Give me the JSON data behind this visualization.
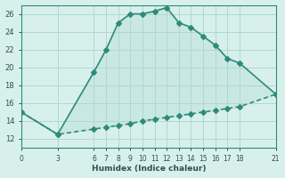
{
  "line1_x": [
    0,
    3,
    6,
    7,
    8,
    9,
    10,
    11,
    12,
    13,
    14,
    15,
    16,
    17,
    18,
    21
  ],
  "line1_y": [
    15,
    12.5,
    19.5,
    22,
    25,
    26,
    26,
    26.3,
    26.7,
    25,
    24.5,
    23.5,
    22.5,
    21,
    20.5,
    17
  ],
  "line2_x": [
    0,
    3,
    6,
    7,
    8,
    9,
    10,
    11,
    12,
    13,
    14,
    15,
    16,
    17,
    18,
    21
  ],
  "line2_y": [
    15,
    12.5,
    13.1,
    13.3,
    13.5,
    13.7,
    14.0,
    14.2,
    14.4,
    14.6,
    14.8,
    15.0,
    15.2,
    15.4,
    15.6,
    17
  ],
  "line_color": "#2e8b7a",
  "bg_color": "#d8f0ec",
  "grid_color": "#b0d8d0",
  "xlabel": "Humidex (Indice chaleur)",
  "ylabel": "",
  "xlim": [
    0,
    21
  ],
  "ylim": [
    11,
    27
  ],
  "yticks": [
    12,
    14,
    16,
    18,
    20,
    22,
    24,
    26
  ],
  "xticks": [
    0,
    3,
    6,
    7,
    8,
    9,
    10,
    11,
    12,
    13,
    14,
    15,
    16,
    17,
    18,
    21
  ],
  "tick_color": "#2e8b7a",
  "font_color": "#2e5050",
  "marker": "D",
  "markersize": 3,
  "linewidth": 1.2
}
